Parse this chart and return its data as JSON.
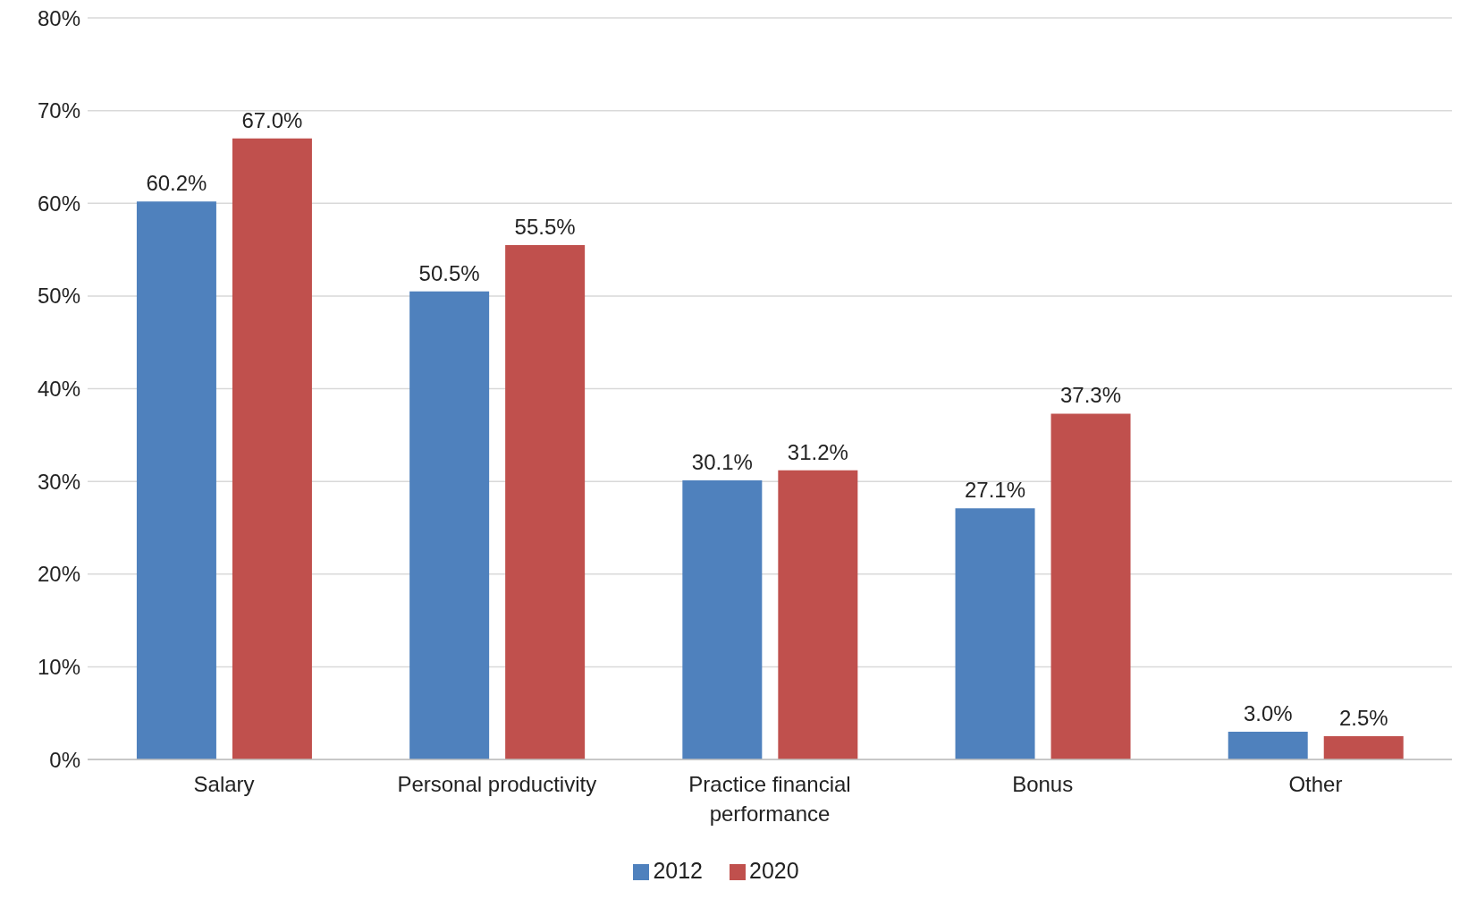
{
  "chart_data": {
    "type": "bar",
    "categories": [
      "Salary",
      "Personal productivity",
      "Practice financial performance",
      "Bonus",
      "Other"
    ],
    "series": [
      {
        "name": "2012",
        "color": "#4f81bd",
        "values": [
          60.2,
          50.5,
          30.1,
          27.1,
          3.0
        ],
        "value_labels": [
          "60.2%",
          "50.5%",
          "30.1%",
          "27.1%",
          "3.0%"
        ]
      },
      {
        "name": "2020",
        "color": "#c0504d",
        "values": [
          67.0,
          55.5,
          31.2,
          37.3,
          2.5
        ],
        "value_labels": [
          "67.0%",
          "55.5%",
          "31.2%",
          "37.3%",
          "2.5%"
        ]
      }
    ],
    "ylim": [
      0,
      80
    ],
    "yticks": [
      {
        "value": 0,
        "label": "0%"
      },
      {
        "value": 10,
        "label": "10%"
      },
      {
        "value": 20,
        "label": "20%"
      },
      {
        "value": 30,
        "label": "30%"
      },
      {
        "value": 40,
        "label": "40%"
      },
      {
        "value": 50,
        "label": "50%"
      },
      {
        "value": 60,
        "label": "60%"
      },
      {
        "value": 70,
        "label": "70%"
      },
      {
        "value": 80,
        "label": "80%"
      }
    ],
    "grid": "y",
    "legend": "bottom"
  }
}
